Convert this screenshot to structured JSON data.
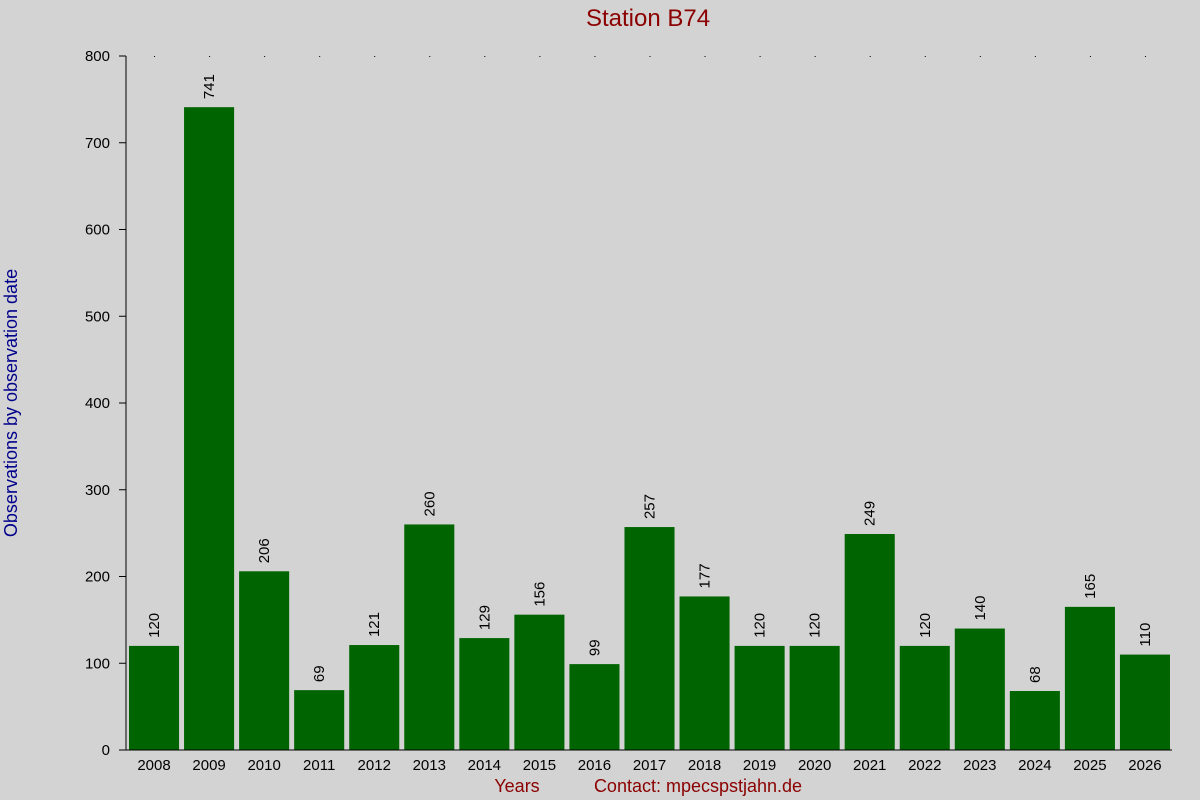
{
  "chart_data": {
    "type": "bar",
    "title": "Station B74",
    "xlabel": "Years",
    "ylabel": "Observations by observation date",
    "contact": "Contact: mpecspstjahn.de",
    "categories": [
      "2008",
      "2009",
      "2010",
      "2011",
      "2012",
      "2013",
      "2014",
      "2015",
      "2016",
      "2017",
      "2018",
      "2019",
      "2020",
      "2021",
      "2022",
      "2023",
      "2024",
      "2025",
      "2026"
    ],
    "values": [
      120,
      741,
      206,
      69,
      121,
      260,
      129,
      156,
      99,
      257,
      177,
      120,
      120,
      249,
      120,
      140,
      68,
      165,
      110
    ],
    "ylim": [
      0,
      800
    ],
    "yticks": [
      0,
      100,
      200,
      300,
      400,
      500,
      600,
      700,
      800
    ],
    "grid": false,
    "colors": {
      "bar": "#006400",
      "title": "#8b0000",
      "xlabel": "#8b0000",
      "ylabel": "#00008b",
      "background": "#d3d3d3"
    }
  }
}
